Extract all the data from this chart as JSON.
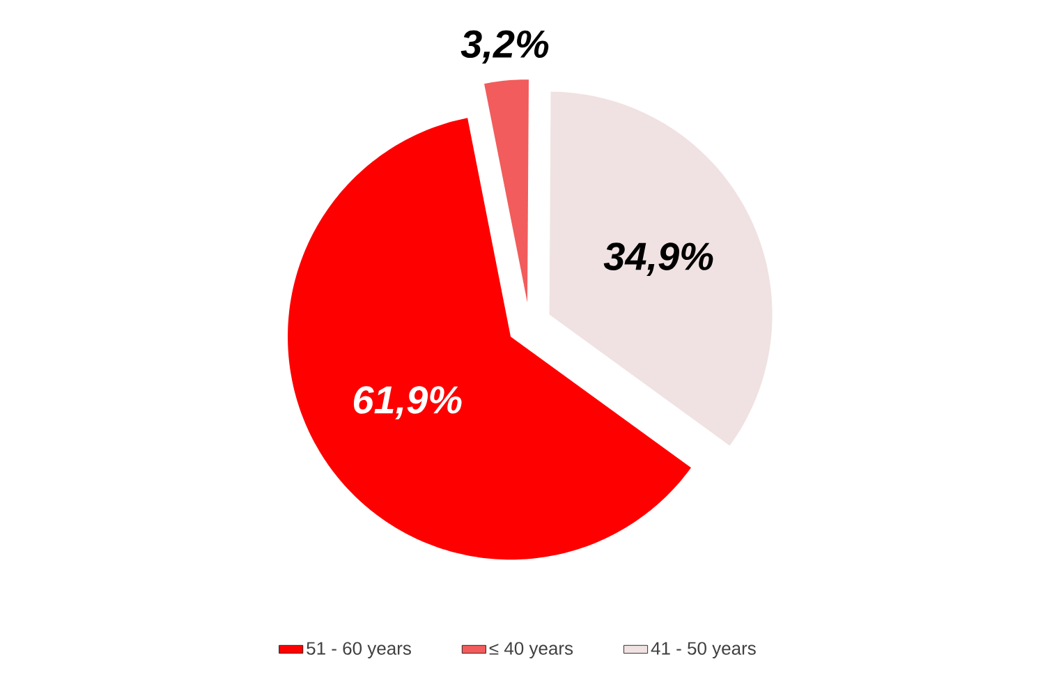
{
  "chart_data": {
    "type": "pie",
    "categories": [
      "51 - 60 years",
      "≤ 40 years",
      "41 - 50 years"
    ],
    "values": [
      61.9,
      3.2,
      34.9
    ],
    "value_labels": [
      "61,9%",
      "3,2%",
      "34,9%"
    ],
    "colors": [
      "#ff0000",
      "#f25c5c",
      "#f0e2e2"
    ],
    "legend": "bottom"
  }
}
